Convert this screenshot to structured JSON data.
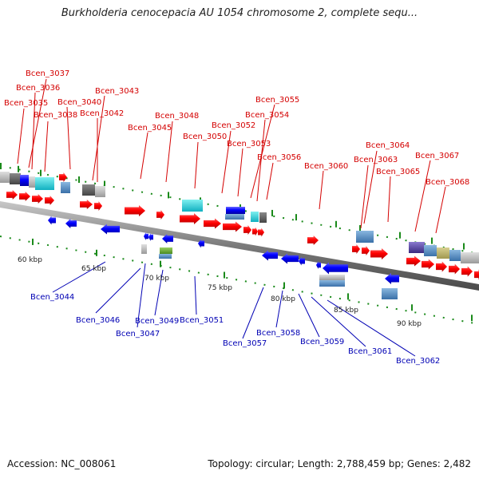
{
  "title": "Burkholderia cenocepacia AU 1054 chromosome 2, complete sequ...",
  "accession_label": "Accession: NC_008061",
  "topology_label": "Topology: circular; Length: 2,788,459 bp; Genes: 2,482",
  "colors": {
    "forward_label": "#d40000",
    "reverse_label": "#0000b4",
    "forward_gene": "#ff0000",
    "reverse_gene": "#0000ff",
    "backbone": "#8a8a8a",
    "tick": "#1a8a1a"
  },
  "scale_labels": [
    "60 kbp",
    "65 kbp",
    "70 kbp",
    "75 kbp",
    "80 kbp",
    "85 kbp",
    "90 kbp"
  ],
  "forward_labels": [
    "Bcen_3037",
    "Bcen_3036",
    "Bcen_3035",
    "Bcen_3040",
    "Bcen_3043",
    "Bcen_3038",
    "Bcen_3042",
    "Bcen_3045",
    "Bcen_3048",
    "Bcen_3050",
    "Bcen_3052",
    "Bcen_3053",
    "Bcen_3055",
    "Bcen_3054",
    "Bcen_3056",
    "Bcen_3060",
    "Bcen_3064",
    "Bcen_3063",
    "Bcen_3065",
    "Bcen_3067",
    "Bcen_3068"
  ],
  "reverse_labels": [
    "Bcen_3044",
    "Bcen_3046",
    "Bcen_3047",
    "Bcen_3049",
    "Bcen_3051",
    "Bcen_3057",
    "Bcen_3058",
    "Bcen_3059",
    "Bcen_3061",
    "Bcen_3062"
  ]
}
